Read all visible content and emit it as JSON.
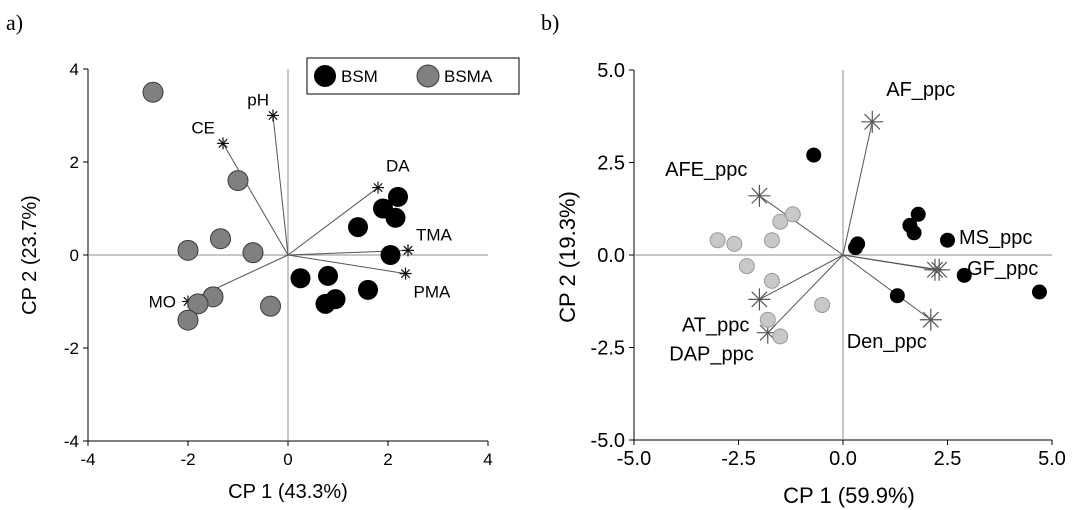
{
  "chart_data": [
    {
      "type": "scatter",
      "panel_label": "a)",
      "xlabel": "CP 1 (43.3%)",
      "ylabel": "CP 2 (23.7%)",
      "xlim": [
        -4,
        4
      ],
      "ylim": [
        -4,
        4
      ],
      "xticks": [
        -4,
        -2,
        0,
        2,
        4
      ],
      "yticks": [
        -4,
        -2,
        0,
        2,
        4
      ],
      "xtick_labels": [
        "-4",
        "-2",
        "0",
        "2",
        "4"
      ],
      "ytick_labels": [
        "-4",
        "-2",
        "0",
        "2",
        "4"
      ],
      "legend": {
        "placement": "top-right",
        "entries": [
          "BSM",
          "BSMA"
        ]
      },
      "series": [
        {
          "name": "BSM",
          "color": "#000000",
          "points": [
            [
              1.4,
              0.6
            ],
            [
              1.9,
              1.0
            ],
            [
              2.15,
              0.8
            ],
            [
              2.2,
              1.25
            ],
            [
              2.05,
              0.0
            ],
            [
              0.25,
              -0.5
            ],
            [
              0.8,
              -0.45
            ],
            [
              0.75,
              -1.05
            ],
            [
              0.95,
              -0.95
            ],
            [
              1.6,
              -0.75
            ]
          ]
        },
        {
          "name": "BSMA",
          "color": "#808080",
          "points": [
            [
              -2.7,
              3.5
            ],
            [
              -1.0,
              1.6
            ],
            [
              -2.0,
              0.1
            ],
            [
              -1.35,
              0.35
            ],
            [
              -0.7,
              0.05
            ],
            [
              -1.5,
              -0.9
            ],
            [
              -1.8,
              -1.05
            ],
            [
              -2.0,
              -1.4
            ],
            [
              -0.35,
              -1.1
            ]
          ]
        }
      ],
      "vectors": [
        {
          "label": "pH",
          "x": -0.3,
          "y": 3.0
        },
        {
          "label": "CE",
          "x": -1.3,
          "y": 2.4
        },
        {
          "label": "DA",
          "x": 1.8,
          "y": 1.45
        },
        {
          "label": "TMA",
          "x": 2.4,
          "y": 0.1
        },
        {
          "label": "PMA",
          "x": 2.35,
          "y": -0.4
        },
        {
          "label": "MO",
          "x": -2.0,
          "y": -1.0
        }
      ]
    },
    {
      "type": "scatter",
      "panel_label": "b)",
      "xlabel": "CP 1 (59.9%)",
      "ylabel": "CP 2 (19.3%)",
      "xlim": [
        -5,
        5
      ],
      "ylim": [
        -5,
        5
      ],
      "xticks": [
        -5,
        -2.5,
        0,
        2.5,
        5
      ],
      "yticks": [
        -5,
        -2.5,
        0,
        2.5,
        5
      ],
      "xtick_labels": [
        "-5.0",
        "-2.5",
        "0.0",
        "2.5",
        "5.0"
      ],
      "ytick_labels": [
        "-5.0",
        "-2.5",
        "0.0",
        "2.5",
        "5.0"
      ],
      "series": [
        {
          "color": "#000000",
          "points": [
            [
              -0.7,
              2.7
            ],
            [
              0.35,
              0.3
            ],
            [
              0.3,
              0.2
            ],
            [
              1.6,
              0.8
            ],
            [
              1.8,
              1.1
            ],
            [
              1.7,
              0.6
            ],
            [
              2.5,
              0.4
            ],
            [
              2.9,
              -0.55
            ],
            [
              4.7,
              -1.0
            ],
            [
              1.3,
              -1.1
            ]
          ]
        },
        {
          "color": "#c8c8c8",
          "points": [
            [
              -3.0,
              0.4
            ],
            [
              -2.6,
              0.3
            ],
            [
              -1.7,
              0.4
            ],
            [
              -1.5,
              0.9
            ],
            [
              -1.2,
              1.1
            ],
            [
              -2.3,
              -0.3
            ],
            [
              -1.7,
              -0.7
            ],
            [
              -1.8,
              -1.75
            ],
            [
              -1.5,
              -2.2
            ],
            [
              -0.5,
              -1.35
            ]
          ]
        }
      ],
      "vectors": [
        {
          "label": "AF_ppc",
          "x": 0.7,
          "y": 3.6
        },
        {
          "label": "AFE_ppc",
          "x": -2.0,
          "y": 1.6
        },
        {
          "label": "MS_ppc",
          "x": 2.2,
          "y": -0.4
        },
        {
          "label": "GF_ppc",
          "x": 2.3,
          "y": -0.4
        },
        {
          "label": "AT_ppc",
          "x": -2.0,
          "y": -1.2
        },
        {
          "label": "DAP_ppc",
          "x": -1.8,
          "y": -2.1
        },
        {
          "label": "Den_ppc",
          "x": 2.1,
          "y": -1.75
        }
      ]
    }
  ]
}
